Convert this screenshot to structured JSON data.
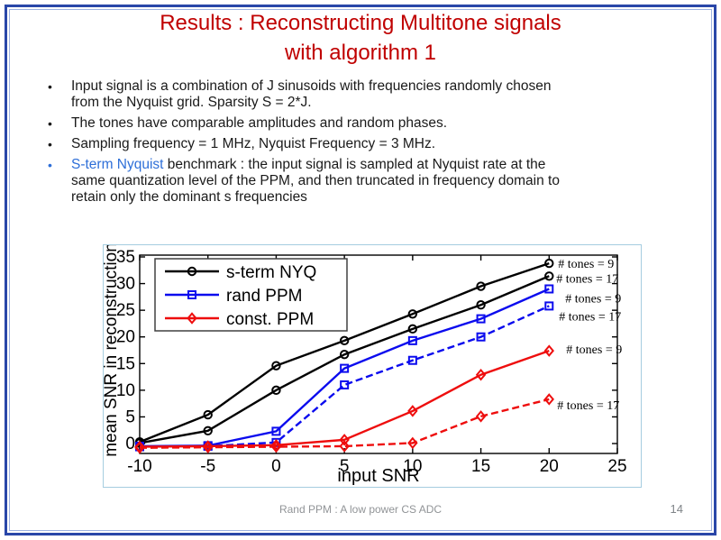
{
  "slide": {
    "title_line1": "Results : Reconstructing Multitone signals",
    "title_line2": "with algorithm 1",
    "title_color": "#c00000",
    "border_color": "#2946a8",
    "accent_blue": "#2e6fd8"
  },
  "bullets": [
    {
      "marker_color": "#1a1a1a",
      "lines": [
        [
          {
            "text": "Input signal is a combination of J sinusoids with frequencies randomly chosen",
            "color": "#1a1a1a"
          }
        ],
        [
          {
            "text": "from the Nyquist grid.  Sparsity S = 2*J.",
            "color": "#1a1a1a"
          }
        ]
      ]
    },
    {
      "marker_color": "#1a1a1a",
      "lines": [
        [
          {
            "text": "The tones have comparable amplitudes and random phases.",
            "color": "#1a1a1a"
          }
        ]
      ]
    },
    {
      "marker_color": "#1a1a1a",
      "lines": [
        [
          {
            "text": "Sampling frequency = 1 MHz, Nyquist Frequency = 3 MHz.",
            "color": "#1a1a1a"
          }
        ]
      ]
    },
    {
      "marker_color": "#2e6fd8",
      "lines": [
        [
          {
            "text": "S-term Nyquist",
            "color": "#2e6fd8"
          },
          {
            "text": " benchmark : the input signal is sampled at Nyquist rate at the",
            "color": "#1a1a1a"
          }
        ],
        [
          {
            "text": "same quantization level of the PPM, and then truncated in frequency domain to",
            "color": "#1a1a1a"
          }
        ],
        [
          {
            "text": "retain only the dominant s frequencies",
            "color": "#1a1a1a"
          }
        ]
      ]
    }
  ],
  "footer": {
    "text": "Rand PPM : A low power CS ADC",
    "page_number": "14"
  },
  "chart_data": {
    "type": "line",
    "title": "",
    "xlabel": "input SNR",
    "ylabel": "mean SNR in reconstruction",
    "x": [
      -10,
      -5,
      0,
      5,
      10,
      15,
      20
    ],
    "xlim": [
      -10,
      25
    ],
    "ylim": [
      -1.9,
      35.4
    ],
    "xticks": [
      -10,
      -5,
      0,
      5,
      10,
      15,
      20,
      25
    ],
    "yticks": [
      0,
      5,
      10,
      15,
      20,
      25,
      30,
      35
    ],
    "grid": false,
    "legend_position": "top-left",
    "legend": [
      "s-term NYQ",
      "rand PPM",
      "const. PPM"
    ],
    "series": [
      {
        "name": "s-term NYQ",
        "tones": 9,
        "color": "#000000",
        "style": "solid",
        "marker": "circle",
        "values": [
          0.3,
          5.4,
          14.6,
          19.3,
          24.3,
          29.5,
          33.8
        ],
        "annotation": "# tones = 9"
      },
      {
        "name": "s-term NYQ",
        "tones": 17,
        "color": "#000000",
        "style": "solid",
        "marker": "circle",
        "values": [
          0.1,
          2.4,
          10.0,
          16.7,
          21.5,
          26.0,
          31.4
        ],
        "annotation": "# tones = 17"
      },
      {
        "name": "rand PPM",
        "tones": 9,
        "color": "#0b0bee",
        "style": "solid",
        "marker": "square",
        "values": [
          -0.5,
          -0.4,
          2.3,
          14.1,
          19.3,
          23.4,
          29.0
        ],
        "annotation": "# tones = 9"
      },
      {
        "name": "rand PPM",
        "tones": 17,
        "color": "#0b0bee",
        "style": "dashed",
        "marker": "square",
        "values": [
          -0.6,
          -0.5,
          0.2,
          11.0,
          15.6,
          20.0,
          25.8
        ],
        "annotation": "# tones = 17"
      },
      {
        "name": "const. PPM",
        "tones": 9,
        "color": "#ee0d0d",
        "style": "solid",
        "marker": "diamond",
        "values": [
          -0.6,
          -0.5,
          -0.3,
          0.7,
          6.1,
          12.9,
          17.4
        ],
        "annotation": "# tones = 9"
      },
      {
        "name": "const. PPM",
        "tones": 17,
        "color": "#ee0d0d",
        "style": "dashed",
        "marker": "diamond",
        "values": [
          -0.8,
          -0.7,
          -0.6,
          -0.5,
          0.1,
          5.1,
          8.3
        ],
        "annotation": "# tones = 17"
      }
    ]
  }
}
